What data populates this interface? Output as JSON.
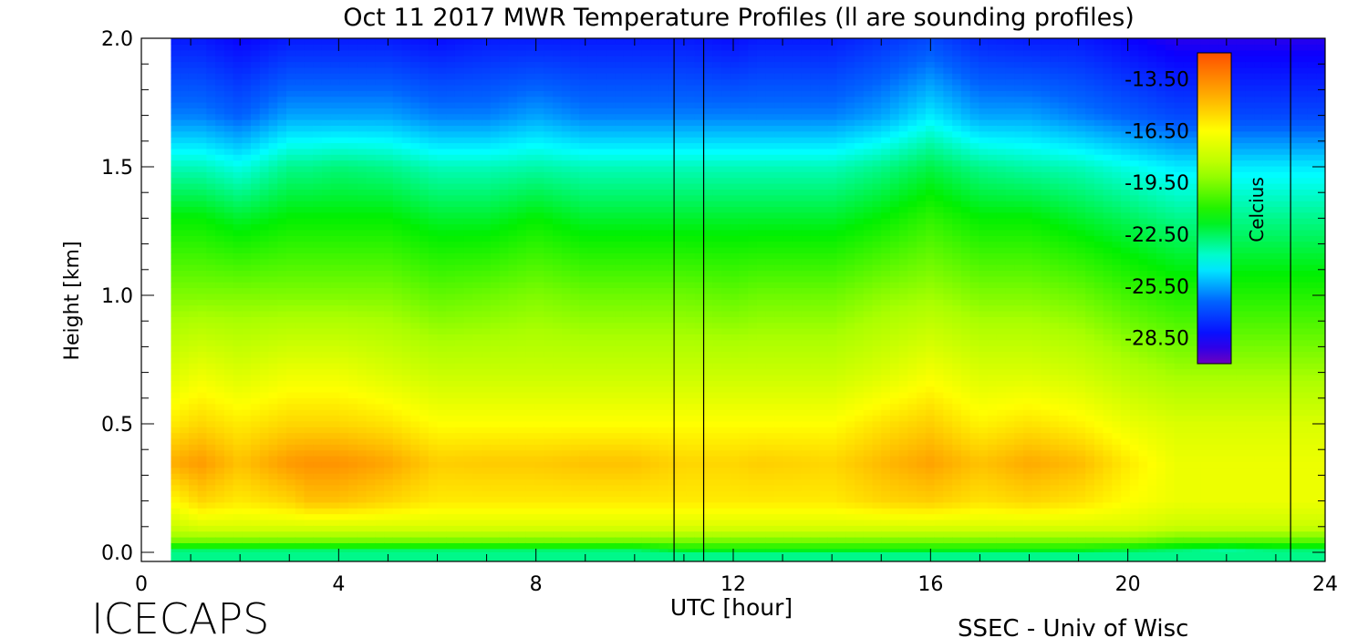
{
  "chart_data": {
    "type": "heatmap",
    "title": "Oct 11 2017 MWR Temperature Profiles (ll are sounding profiles)",
    "xlabel": "UTC [hour]",
    "ylabel": "Height [km]",
    "xlim": [
      0,
      24
    ],
    "ylim": [
      0,
      2.0
    ],
    "x_ticks": [
      "0",
      "4",
      "8",
      "12",
      "16",
      "20",
      "24"
    ],
    "y_ticks": [
      "0.0",
      "0.5",
      "1.0",
      "1.5",
      "2.0"
    ],
    "data_start_hour": 0.6,
    "data_end_hour": 24,
    "sounding_times_hour": [
      10.8,
      11.4,
      23.3
    ],
    "hours": [
      0.6,
      1.2,
      2,
      3,
      3.4,
      4,
      5,
      6,
      7,
      8,
      9,
      10,
      11,
      12,
      12.5,
      14,
      15,
      16,
      17,
      18,
      19,
      20,
      21,
      22,
      23,
      24
    ],
    "heights_km": [
      0,
      0.05,
      0.1,
      0.2,
      0.35,
      0.5,
      0.7,
      1.0,
      1.3,
      1.5,
      1.7,
      2.0
    ],
    "profiles_celcius": [
      [
        -23,
        -19.5,
        -18,
        -16.5,
        -14.5,
        -16,
        -17.5,
        -19.5,
        -21.5,
        -23.5,
        -26,
        -28
      ],
      [
        -23,
        -19.5,
        -17.5,
        -15.5,
        -14,
        -15.5,
        -17,
        -19.5,
        -21.5,
        -23.5,
        -26,
        -28
      ],
      [
        -23,
        -19.5,
        -17.5,
        -16,
        -15,
        -16,
        -17.5,
        -19.5,
        -22,
        -24,
        -26.5,
        -28.5
      ],
      [
        -23,
        -19.5,
        -17.5,
        -15.5,
        -14,
        -15.5,
        -17,
        -19.5,
        -21.5,
        -23,
        -25.5,
        -28
      ],
      [
        -23,
        -19.5,
        -17.5,
        -15,
        -13.8,
        -15.5,
        -17,
        -19.5,
        -21.5,
        -23,
        -25.5,
        -28
      ],
      [
        -23,
        -19.5,
        -17.5,
        -15,
        -13.8,
        -15.5,
        -17,
        -19.5,
        -21.5,
        -22.8,
        -25.5,
        -28
      ],
      [
        -23,
        -19.5,
        -17.5,
        -15.5,
        -14.3,
        -15.8,
        -17.5,
        -19.5,
        -21.5,
        -23,
        -25.5,
        -28
      ],
      [
        -23,
        -19.5,
        -17.5,
        -16,
        -15.3,
        -16.5,
        -18,
        -20,
        -22,
        -23.5,
        -26,
        -28.3
      ],
      [
        -23,
        -19.5,
        -17.5,
        -16,
        -15.2,
        -16.5,
        -18,
        -19.8,
        -22,
        -23.5,
        -26,
        -28
      ],
      [
        -23,
        -19.5,
        -17.5,
        -16,
        -15.2,
        -16.5,
        -18,
        -19.5,
        -21.5,
        -23.3,
        -25.5,
        -28
      ],
      [
        -23,
        -19.5,
        -17.5,
        -16,
        -15,
        -16.5,
        -18,
        -19.8,
        -22,
        -23.5,
        -26,
        -28
      ],
      [
        -23,
        -19.5,
        -17.5,
        -16,
        -15,
        -16.5,
        -18,
        -19.8,
        -22,
        -23.5,
        -26,
        -28
      ],
      [
        -22,
        -19.5,
        -17.5,
        -16,
        -15.5,
        -16.5,
        -18,
        -19.8,
        -22,
        -23.5,
        -26,
        -28
      ],
      [
        -22,
        -19.5,
        -17.5,
        -16,
        -15.5,
        -16.5,
        -18,
        -20,
        -22,
        -23.5,
        -26,
        -28.3
      ],
      [
        -22,
        -19.5,
        -17.5,
        -16,
        -15.3,
        -16.5,
        -18,
        -19.8,
        -22,
        -23.5,
        -26,
        -28
      ],
      [
        -22,
        -19.5,
        -17.5,
        -16,
        -15.5,
        -16.5,
        -18,
        -19.8,
        -22,
        -23.5,
        -26,
        -28
      ],
      [
        -22,
        -19.5,
        -17.5,
        -15.5,
        -14.8,
        -15.8,
        -17.5,
        -19.3,
        -21.5,
        -23,
        -25.5,
        -27.5
      ],
      [
        -22,
        -19.5,
        -17.5,
        -15.3,
        -14.2,
        -15.3,
        -16.8,
        -19,
        -20.8,
        -22.3,
        -24.5,
        -27
      ],
      [
        -22,
        -19.5,
        -17.5,
        -15.8,
        -15,
        -16.2,
        -17.5,
        -19.5,
        -21.5,
        -23,
        -25.5,
        -27.8
      ],
      [
        -22,
        -19.5,
        -17.5,
        -15.5,
        -14.4,
        -15.8,
        -17.5,
        -19.5,
        -21.5,
        -23.3,
        -25.5,
        -28
      ],
      [
        -22,
        -19.5,
        -17.5,
        -15.8,
        -14.8,
        -16.2,
        -17.8,
        -19.8,
        -22,
        -23.5,
        -26,
        -28
      ],
      [
        -22.5,
        -19.5,
        -17.5,
        -16.5,
        -16,
        -17,
        -18.5,
        -20.5,
        -22.5,
        -24,
        -26.5,
        -28.5
      ],
      [
        -23,
        -20,
        -18,
        -17,
        -17,
        -17.5,
        -19,
        -21,
        -23,
        -24.5,
        -27,
        -29
      ],
      [
        -23.5,
        -20,
        -18,
        -17,
        -17,
        -17.5,
        -19,
        -21,
        -23,
        -24.5,
        -27,
        -29
      ],
      [
        -23,
        -20,
        -18,
        -17,
        -17,
        -17.5,
        -19,
        -21,
        -23,
        -24.5,
        -27,
        -29
      ],
      [
        -23,
        -20,
        -18,
        -17,
        -17,
        -17.5,
        -19,
        -21,
        -23,
        -24.5,
        -27,
        -29
      ]
    ],
    "colorbar": {
      "label": "Celcius",
      "min": -30,
      "max": -12,
      "tick_values": [
        -28.5,
        -25.5,
        -22.5,
        -19.5,
        -16.5,
        -13.5
      ],
      "tick_labels": [
        "-28.50",
        "-25.50",
        "-22.50",
        "-19.50",
        "-16.50",
        "-13.50"
      ]
    }
  },
  "footer": {
    "left": "ICECAPS",
    "right": "SSEC - Univ of Wisc"
  }
}
